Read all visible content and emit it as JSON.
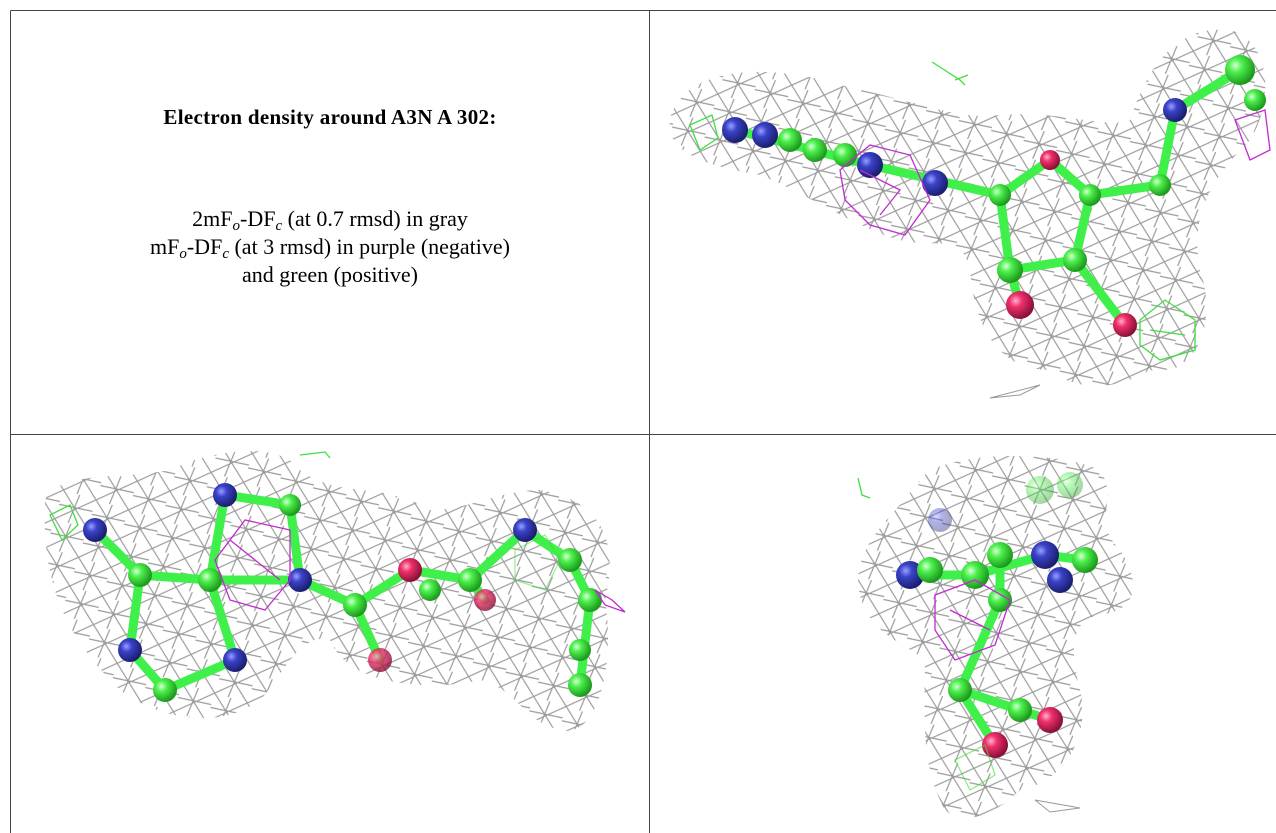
{
  "caption": {
    "title": "Electron density around A3N A 302:",
    "lines": [
      [
        "2mF",
        "o",
        "-DF",
        "c",
        " (at 0.7 rmsd) in gray"
      ],
      [
        "mF",
        "o",
        "-DF",
        "c",
        " (at 3 rmsd) in purple (negative)"
      ],
      [
        "and green (positive)"
      ]
    ]
  }
}
